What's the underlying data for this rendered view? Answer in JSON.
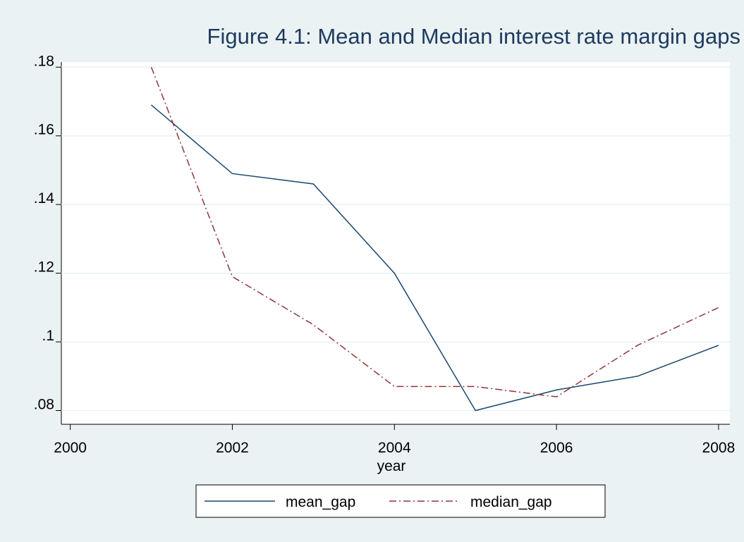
{
  "chart_data": {
    "type": "line",
    "title": "Figure 4.1: Mean and Median interest rate margin gaps",
    "x_label": "year",
    "x": [
      2001,
      2002,
      2003,
      2004,
      2005,
      2006,
      2007,
      2008
    ],
    "series": [
      {
        "name": "mean_gap",
        "color": "#1a476f",
        "dash": "solid",
        "values": [
          0.169,
          0.149,
          0.146,
          0.12,
          0.08,
          0.086,
          0.09,
          0.099
        ]
      },
      {
        "name": "median_gap",
        "color": "#90353b",
        "dash": "dashdot",
        "values": [
          0.18,
          0.119,
          0.105,
          0.087,
          0.087,
          0.084,
          0.099,
          0.11
        ]
      }
    ],
    "xlim": [
      1999.89,
      2008.14
    ],
    "xticks": [
      2000,
      2002,
      2004,
      2006,
      2008
    ],
    "ylim": [
      0.076,
      0.1815
    ],
    "yticks": [
      {
        "value": 0.08,
        "label": ".08"
      },
      {
        "value": 0.1,
        "label": ".1"
      },
      {
        "value": 0.12,
        "label": ".12"
      },
      {
        "value": 0.14,
        "label": ".14"
      },
      {
        "value": 0.16,
        "label": ".16"
      },
      {
        "value": 0.18,
        "label": ".18"
      }
    ],
    "grid": true
  }
}
